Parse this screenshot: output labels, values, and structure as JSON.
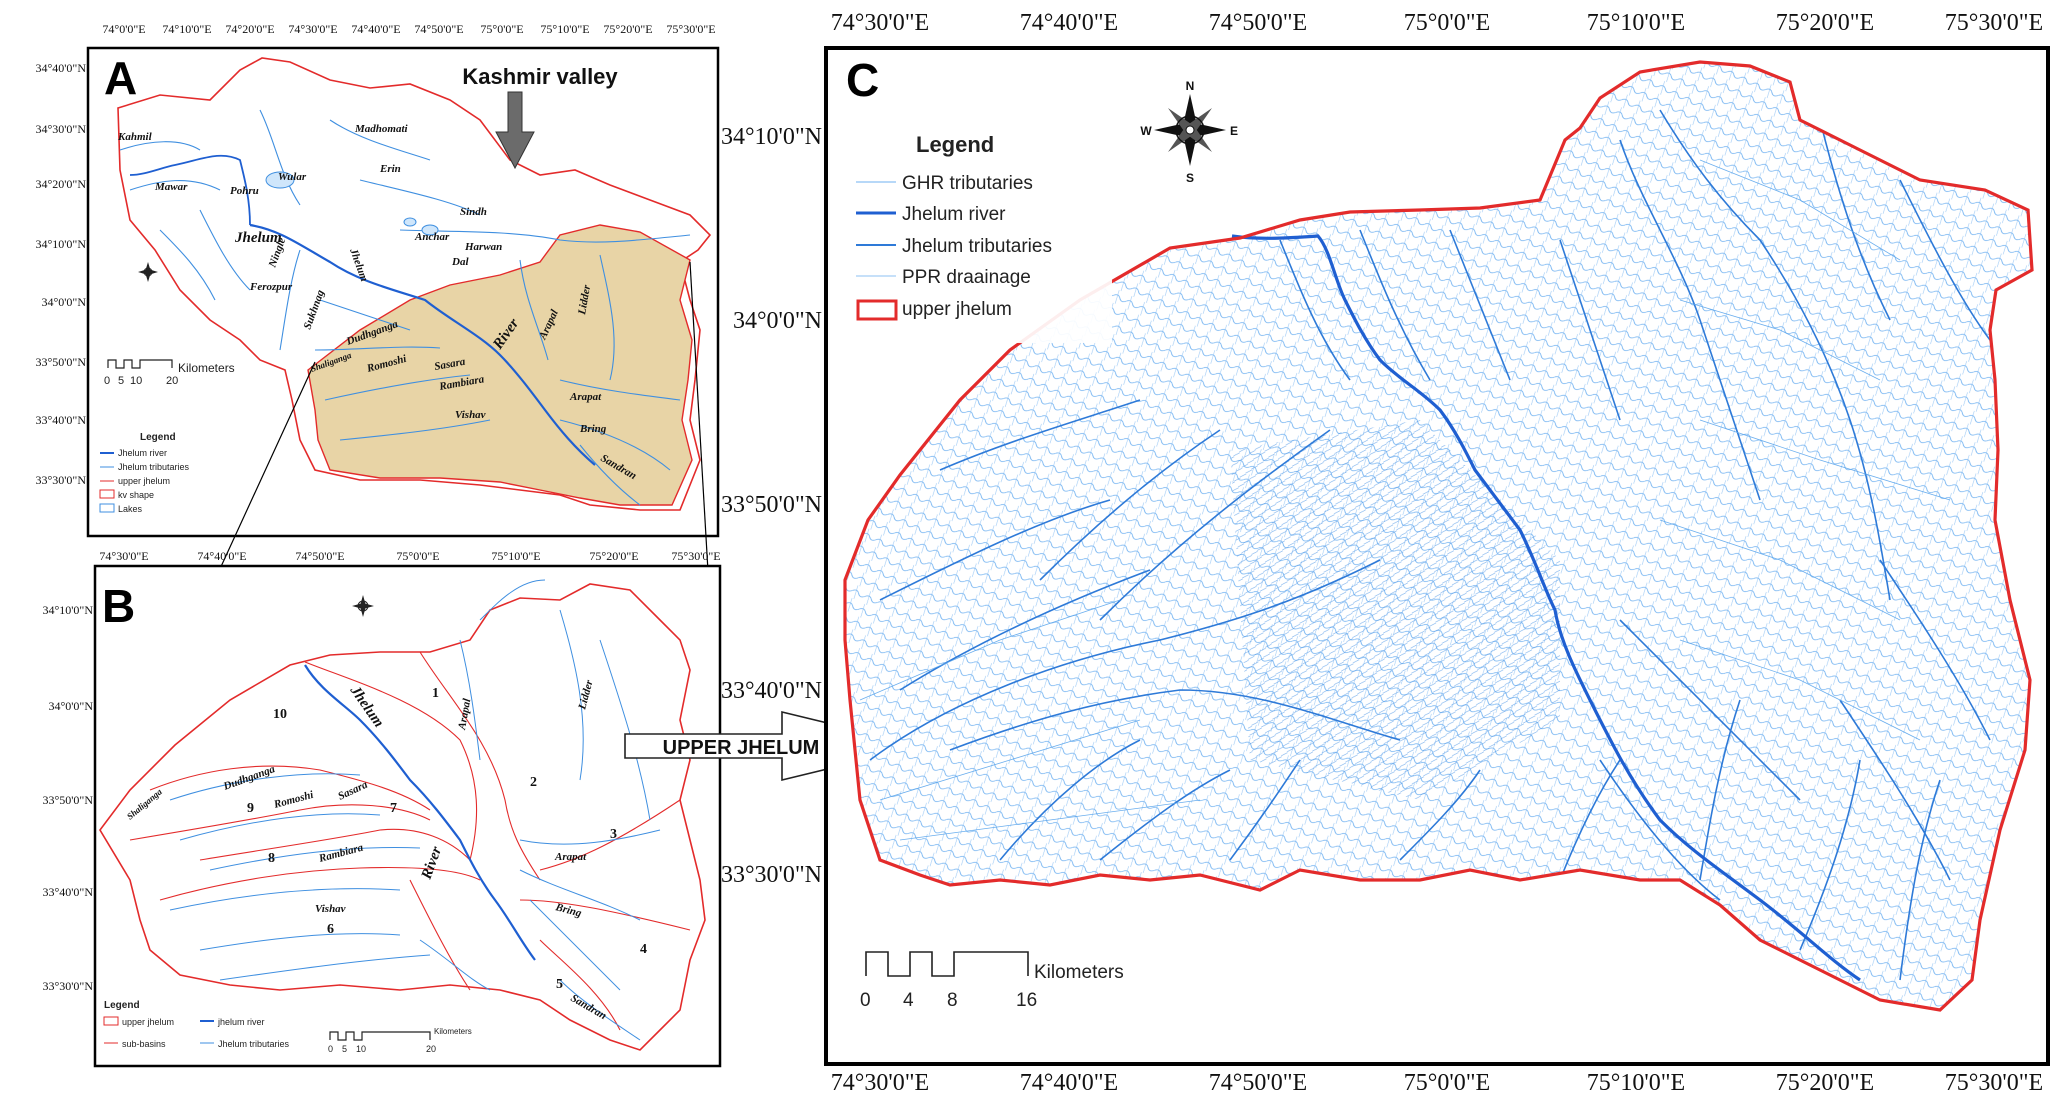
{
  "panels": {
    "a": {
      "letter": "A",
      "top_ticks": [
        "74°0'0\"E",
        "74°10'0\"E",
        "74°20'0\"E",
        "74°30'0\"E",
        "74°40'0\"E",
        "74°50'0\"E",
        "75°0'0\"E",
        "75°10'0\"E",
        "75°20'0\"E",
        "75°30'0\"E"
      ],
      "bottom_ticks": [
        "74°30'0\"E",
        "74°40'0\"E",
        "74°50'0\"E",
        "75°0'0\"E",
        "75°10'0\"E",
        "75°20'0\"E",
        "75°30'0\"E"
      ],
      "left_ticks": [
        "34°40'0\"N",
        "34°30'0\"N",
        "34°20'0\"N",
        "34°10'0\"N",
        "34°0'0\"N",
        "33°50'0\"N",
        "33°40'0\"N",
        "33°30'0\"N"
      ],
      "callout": "Kashmir valley",
      "river_labels": [
        "Kahmil",
        "Mawar",
        "Pohru",
        "Wular",
        "Madhomati",
        "Erin",
        "Jhelum",
        "Sindh",
        "Jhelum",
        "Ningle",
        "Ferozpur",
        "Anchar",
        "Harwan",
        "Dal",
        "Sukhnag",
        "Shaliganga",
        "Dudhganga",
        "Romoshi",
        "Sasara",
        "Rambiara",
        "River",
        "Arapal",
        "Lidder",
        "Arapat",
        "Vishav",
        "Bring",
        "Sandran"
      ],
      "scale_label": "Kilometers",
      "scale_ticks": [
        "0",
        "5",
        "10",
        "20"
      ],
      "legend": {
        "title": "Legend",
        "items": [
          "Jhelum river",
          "Jhelum tributaries",
          "upper jhelum",
          "kv shape",
          "Lakes"
        ]
      }
    },
    "b": {
      "letter": "B",
      "left_ticks": [
        "34°10'0\"N",
        "34°0'0\"N",
        "33°50'0\"N",
        "33°40'0\"N",
        "33°30'0\"N"
      ],
      "river_labels": [
        "Jhelum",
        "Arapal",
        "Lidder",
        "Shaliganga",
        "Dudhganga",
        "Romoshi",
        "Sasara",
        "Rambiara",
        "River",
        "Arapat",
        "Vishav",
        "Bring",
        "Sandran"
      ],
      "basin_numbers": [
        "1",
        "2",
        "3",
        "4",
        "5",
        "6",
        "7",
        "8",
        "9",
        "10"
      ],
      "legend": {
        "title": "Legend",
        "items": [
          "upper jhelum",
          "jhelum river",
          "sub-basins",
          "Jhelum tributaries"
        ]
      },
      "scale_label": "Kilometers",
      "scale_ticks": [
        "0",
        "5",
        "10",
        "20"
      ]
    },
    "c": {
      "letter": "C",
      "top_ticks": [
        "74°30'0\"E",
        "74°40'0\"E",
        "74°50'0\"E",
        "75°0'0\"E",
        "75°10'0\"E",
        "75°20'0\"E",
        "75°30'0\"E"
      ],
      "bottom_ticks": [
        "74°30'0\"E",
        "74°40'0\"E",
        "74°50'0\"E",
        "75°0'0\"E",
        "75°10'0\"E",
        "75°20'0\"E",
        "75°30'0\"E"
      ],
      "left_ticks": [
        "34°10'0\"N",
        "34°0'0\"N",
        "33°50'0\"N",
        "33°40'0\"N",
        "33°30'0\"N"
      ],
      "legend": {
        "title": "Legend",
        "items": [
          "GHR tributaries",
          "Jhelum river",
          "Jhelum tributaries",
          "PPR draainage",
          "upper jhelum"
        ]
      },
      "scale_label": "Kilometers",
      "scale_ticks": [
        "0",
        "4",
        "8",
        "16"
      ]
    }
  },
  "arrow_label": "UPPER JHELUM",
  "compass": {
    "n": "N",
    "s": "S",
    "e": "E",
    "w": "W"
  },
  "colors": {
    "boundary": "#e32b2b",
    "river": "#1f5fd1",
    "tributary": "#3f8fe0",
    "fine_drainage": "#5aa5ec",
    "kv_fill": "#e8d4a6",
    "frame": "#000000"
  }
}
